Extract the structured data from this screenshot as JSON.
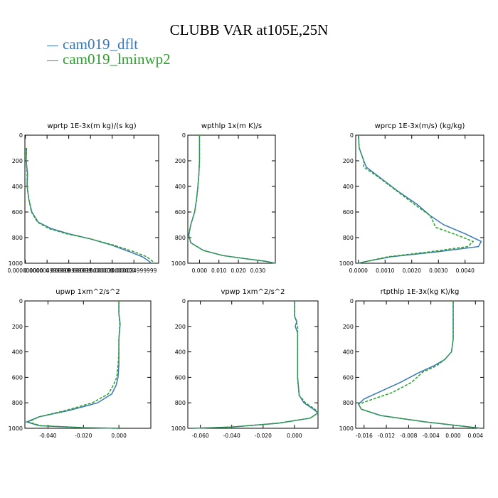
{
  "title": "CLUBB VAR at105E,25N",
  "legend": [
    {
      "name": "cam019_dflt",
      "color": "#3a78b8",
      "style": "solid"
    },
    {
      "name": "cam019_lminwp2",
      "color": "#2ca02c",
      "style": "dashed"
    }
  ],
  "chart_data": [
    {
      "type": "line",
      "title": "wprtp  1E-3x(m kg)/(s kg)",
      "xlim": [
        -1e-07,
        3.07e-05
      ],
      "ylim": [
        1000,
        0
      ],
      "grid": false,
      "xticks": [
        0.0,
        4.999999e-06,
        9.999999e-06,
        1.5e-05,
        2e-05,
        2.4999999e-05
      ],
      "xtick_labels": [
        "0.000000000",
        "0.000004999999",
        "0.000009999999",
        "0.000015000000",
        "0.000020000000",
        "0.000024999999"
      ],
      "yticks": [
        0,
        200,
        400,
        600,
        800,
        1000
      ],
      "ytick_labels": [
        "0",
        "200",
        "400",
        "600",
        "800",
        "1000"
      ],
      "series": [
        {
          "name": "cam019_dflt",
          "x": [
            3e-07,
            2e-07,
            5e-07,
            4e-07,
            8e-07,
            1.5e-06,
            3e-06,
            6e-06,
            1e-05,
            1.5e-05,
            2e-05,
            2.4e-05,
            2.7e-05,
            2.85e-05,
            2.9e-05
          ],
          "y": [
            100,
            200,
            300,
            400,
            500,
            600,
            680,
            730,
            770,
            810,
            860,
            910,
            950,
            985,
            1000
          ]
        },
        {
          "name": "cam019_lminwp2",
          "x": [
            2e-07,
            2e-07,
            4e-07,
            4e-07,
            8e-07,
            1.4e-06,
            2.8e-06,
            5.5e-06,
            9.5e-06,
            1.5e-05,
            2.05e-05,
            2.5e-05,
            2.8e-05,
            2.93e-05,
            2.98e-05
          ],
          "y": [
            100,
            200,
            300,
            400,
            500,
            600,
            680,
            730,
            770,
            810,
            860,
            910,
            950,
            985,
            1000
          ]
        }
      ]
    },
    {
      "type": "line",
      "title": "wpthlp  1x(m K)/s",
      "xlim": [
        -0.006,
        0.039
      ],
      "ylim": [
        1000,
        0
      ],
      "grid": false,
      "xticks": [
        0.0,
        0.01,
        0.02,
        0.03
      ],
      "xtick_labels": [
        "0.000",
        "0.010",
        "0.020",
        "0.030"
      ],
      "yticks": [
        0,
        200,
        400,
        600,
        800,
        1000
      ],
      "ytick_labels": [
        "0",
        "200",
        "400",
        "600",
        "800",
        "1000"
      ],
      "series": [
        {
          "name": "cam019_dflt",
          "x": [
            0.0,
            0.0,
            0.0,
            -0.0003,
            -0.0008,
            -0.0015,
            -0.0025,
            -0.0045,
            -0.0055,
            -0.0045,
            0.002,
            0.012,
            0.024,
            0.034,
            0.039
          ],
          "y": [
            0,
            100,
            200,
            300,
            400,
            500,
            600,
            700,
            780,
            840,
            900,
            940,
            965,
            985,
            1000
          ]
        },
        {
          "name": "cam019_lminwp2",
          "x": [
            0.0,
            0.0,
            0.0,
            -0.0003,
            -0.0008,
            -0.0015,
            -0.0025,
            -0.0045,
            -0.0056,
            -0.0045,
            0.002,
            0.012,
            0.024,
            0.034,
            0.039
          ],
          "y": [
            0,
            100,
            200,
            300,
            400,
            500,
            600,
            700,
            780,
            840,
            900,
            940,
            965,
            985,
            1000
          ]
        }
      ]
    },
    {
      "type": "line",
      "title": "wprcp  1E-3x(m/s) (kg/kg)",
      "xlim": [
        -0.0001,
        0.0047
      ],
      "ylim": [
        1000,
        0
      ],
      "grid": false,
      "xticks": [
        0.0,
        0.001,
        0.002,
        0.003,
        0.004
      ],
      "xtick_labels": [
        "0.0000",
        "0.0010",
        "0.0020",
        "0.0030",
        "0.0040"
      ],
      "yticks": [
        0,
        200,
        400,
        600,
        800,
        1000
      ],
      "ytick_labels": [
        "0",
        "200",
        "400",
        "600",
        "800",
        "1000"
      ],
      "series": [
        {
          "name": "cam019_dflt",
          "x": [
            0.0,
            3e-05,
            0.0002,
            0.0003,
            0.0008,
            0.0015,
            0.0022,
            0.0027,
            0.0032,
            0.004,
            0.0046,
            0.0045,
            0.003,
            0.0012,
            0.0002,
            0.0
          ],
          "y": [
            0,
            100,
            200,
            250,
            330,
            440,
            540,
            630,
            700,
            770,
            830,
            870,
            910,
            950,
            990,
            1000
          ]
        },
        {
          "name": "cam019_lminwp2",
          "x": [
            0.0,
            3e-05,
            0.0002,
            0.0002,
            0.0007,
            0.0014,
            0.0021,
            0.0027,
            0.0029,
            0.0037,
            0.0043,
            0.0041,
            0.0027,
            0.0011,
            0.0002,
            0.0
          ],
          "y": [
            0,
            100,
            200,
            250,
            320,
            430,
            540,
            630,
            720,
            780,
            830,
            870,
            910,
            950,
            990,
            1000
          ]
        }
      ]
    },
    {
      "type": "line",
      "title": "upwp  1xm^2/s^2",
      "xlim": [
        -0.053,
        0.018
      ],
      "ylim": [
        1000,
        0
      ],
      "grid": false,
      "xticks": [
        -0.04,
        -0.02,
        0.0
      ],
      "xtick_labels": [
        "-0.040",
        "-0.020",
        "0.000"
      ],
      "yticks": [
        0,
        200,
        400,
        600,
        800,
        1000
      ],
      "ytick_labels": [
        "0",
        "200",
        "400",
        "600",
        "800",
        "1000"
      ],
      "series": [
        {
          "name": "cam019_dflt",
          "x": [
            0.0,
            0.0,
            0.0007,
            0.0,
            0.0,
            0.0,
            -0.0005,
            -0.0015,
            -0.004,
            -0.012,
            -0.028,
            -0.045,
            -0.052,
            -0.045,
            -0.02,
            0.0
          ],
          "y": [
            0,
            100,
            180,
            300,
            400,
            500,
            600,
            660,
            730,
            800,
            860,
            910,
            950,
            980,
            995,
            1000
          ]
        },
        {
          "name": "cam019_lminwp2",
          "x": [
            0.0,
            0.0,
            0.0005,
            0.0,
            0.0,
            -0.0005,
            -0.0012,
            -0.003,
            -0.006,
            -0.015,
            -0.03,
            -0.045,
            -0.051,
            -0.044,
            -0.02,
            0.0
          ],
          "y": [
            0,
            100,
            180,
            300,
            400,
            500,
            600,
            660,
            730,
            800,
            860,
            910,
            950,
            980,
            995,
            1000
          ]
        }
      ]
    },
    {
      "type": "line",
      "title": "vpwp  1xm^2/s^2",
      "xlim": [
        -0.068,
        0.015
      ],
      "ylim": [
        1000,
        0
      ],
      "grid": false,
      "xticks": [
        -0.06,
        -0.04,
        -0.02,
        0.0
      ],
      "xtick_labels": [
        "-0.060",
        "-0.040",
        "-0.020",
        "0.000"
      ],
      "yticks": [
        0,
        200,
        400,
        600,
        800,
        1000
      ],
      "ytick_labels": [
        "0",
        "200",
        "400",
        "600",
        "800",
        "1000"
      ],
      "series": [
        {
          "name": "cam019_dflt",
          "x": [
            0.0,
            0.0,
            0.0015,
            0.0005,
            0.002,
            0.002,
            0.002,
            0.003,
            0.006,
            0.012,
            0.015,
            0.01,
            -0.01,
            -0.04,
            -0.065
          ],
          "y": [
            0,
            120,
            160,
            200,
            250,
            400,
            600,
            740,
            800,
            850,
            880,
            920,
            960,
            990,
            1000
          ]
        },
        {
          "name": "cam019_lminwp2",
          "x": [
            0.0,
            0.0,
            0.0012,
            0.002,
            0.002,
            0.002,
            0.002,
            0.003,
            0.007,
            0.013,
            0.015,
            0.01,
            -0.01,
            -0.04,
            -0.065
          ],
          "y": [
            0,
            120,
            160,
            200,
            250,
            400,
            600,
            740,
            800,
            850,
            880,
            920,
            960,
            990,
            1000
          ]
        }
      ]
    },
    {
      "type": "line",
      "title": "rtpthlp  1E-3x(kg K)/kg",
      "xlim": [
        -0.0175,
        0.0055
      ],
      "ylim": [
        1000,
        0
      ],
      "grid": false,
      "xticks": [
        -0.016,
        -0.012,
        -0.008,
        -0.004,
        0.0,
        0.004
      ],
      "xtick_labels": [
        "-0.016",
        "-0.012",
        "-0.008",
        "-0.004",
        "0.000",
        "0.004"
      ],
      "yticks": [
        0,
        200,
        400,
        600,
        800,
        1000
      ],
      "ytick_labels": [
        "0",
        "200",
        "400",
        "600",
        "800",
        "1000"
      ],
      "series": [
        {
          "name": "cam019_dflt",
          "x": [
            0.0,
            0.0,
            0.0,
            -0.0003,
            -0.0015,
            -0.0035,
            -0.006,
            -0.0095,
            -0.013,
            -0.016,
            -0.017,
            -0.0165,
            -0.013,
            -0.005,
            0.002,
            0.005
          ],
          "y": [
            0,
            150,
            300,
            400,
            460,
            510,
            560,
            640,
            710,
            770,
            810,
            850,
            900,
            950,
            985,
            1000
          ]
        },
        {
          "name": "cam019_lminwp2",
          "x": [
            0.0,
            0.0,
            0.0,
            -0.0003,
            -0.0015,
            -0.003,
            -0.0055,
            -0.0075,
            -0.011,
            -0.015,
            -0.017,
            -0.0165,
            -0.013,
            -0.005,
            0.002,
            0.005
          ],
          "y": [
            0,
            150,
            300,
            400,
            460,
            510,
            560,
            640,
            720,
            780,
            810,
            850,
            900,
            950,
            985,
            1000
          ]
        }
      ]
    }
  ]
}
